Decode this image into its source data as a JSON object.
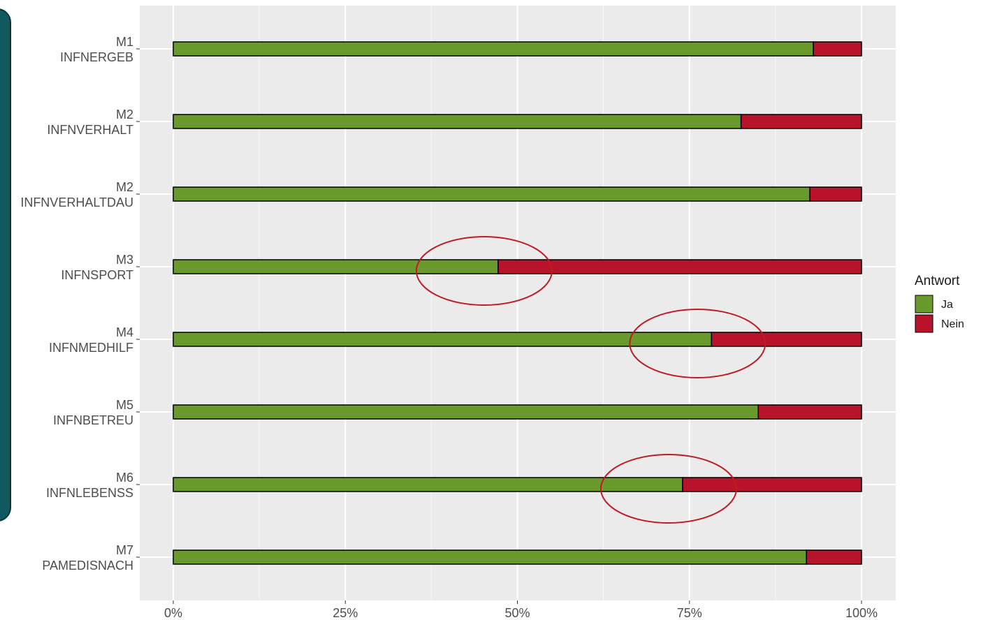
{
  "chart_data": {
    "type": "bar",
    "orientation": "horizontal",
    "stacked": "percent",
    "categories": [
      "M1 INFNERGEB",
      "M2 INFNVERHALT",
      "M2 INFNVERHALTDAU",
      "M3 INFNSPORT",
      "M4 INFNMEDHILF",
      "M5 INFNBETREU",
      "M6 INFNLEBENSS",
      "M7 PAMEDISNACH"
    ],
    "category_lines": [
      [
        "M1",
        "INFNERGEB"
      ],
      [
        "M2",
        "INFNVERHALT"
      ],
      [
        "M2",
        "INFNVERHALTDAU"
      ],
      [
        "M3",
        "INFNSPORT"
      ],
      [
        "M4",
        "INFNMEDHILF"
      ],
      [
        "M5",
        "INFNBETREU"
      ],
      [
        "M6",
        "INFNLEBENSS"
      ],
      [
        "M7",
        "PAMEDISNACH"
      ]
    ],
    "series": [
      {
        "name": "Ja",
        "color": "#6a992c",
        "values": [
          0.93,
          0.825,
          0.925,
          0.472,
          0.782,
          0.85,
          0.74,
          0.92
        ]
      },
      {
        "name": "Nein",
        "color": "#b8132a",
        "values": [
          0.07,
          0.175,
          0.075,
          0.528,
          0.218,
          0.15,
          0.26,
          0.08
        ]
      }
    ],
    "x_ticks": [
      "0%",
      "25%",
      "50%",
      "75%",
      "100%"
    ],
    "xlim": [
      0,
      1
    ],
    "legend": {
      "title": "Antwort",
      "position": "right"
    },
    "highlighted_categories": [
      "M3 INFNSPORT",
      "M4 INFNMEDHILF",
      "M6 INFNLEBENSS"
    ],
    "highlight_color": "#c01a24",
    "panel_background": "#ebebeb",
    "grid": true
  }
}
